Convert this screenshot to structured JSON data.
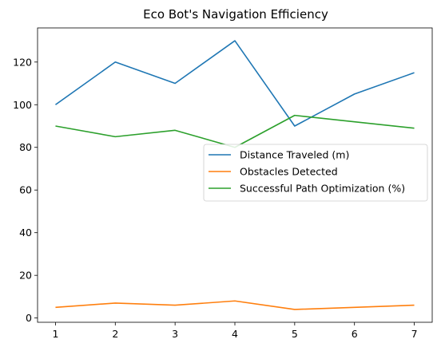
{
  "chart_data": {
    "type": "line",
    "title": "Eco Bot's Navigation Efficiency",
    "xlabel": "",
    "ylabel": "",
    "x": [
      1,
      2,
      3,
      4,
      5,
      6,
      7
    ],
    "xlim": [
      0.7,
      7.3
    ],
    "ylim": [
      -2,
      136
    ],
    "xticks": [
      1,
      2,
      3,
      4,
      5,
      6,
      7
    ],
    "yticks": [
      0,
      20,
      40,
      60,
      80,
      100,
      120
    ],
    "grid": false,
    "legend": "center-right",
    "series": [
      {
        "name": "Distance Traveled (m)",
        "color": "#1f77b4",
        "values": [
          100,
          120,
          110,
          130,
          90,
          105,
          115
        ]
      },
      {
        "name": "Obstacles Detected",
        "color": "#ff7f0e",
        "values": [
          5,
          7,
          6,
          8,
          4,
          5,
          6
        ]
      },
      {
        "name": "Successful Path Optimization (%)",
        "color": "#2ca02c",
        "values": [
          90,
          85,
          88,
          80,
          95,
          92,
          89
        ]
      }
    ]
  }
}
